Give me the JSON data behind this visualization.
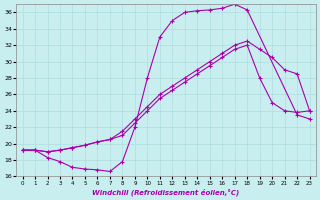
{
  "xlabel": "Windchill (Refroidissement éolien,°C)",
  "background_color": "#c8eef0",
  "grid_color": "#b0dde0",
  "line_color": "#aa00aa",
  "xlim": [
    -0.5,
    23.5
  ],
  "ylim": [
    16,
    37
  ],
  "yticks": [
    16,
    18,
    20,
    22,
    24,
    26,
    28,
    30,
    32,
    34,
    36
  ],
  "xticks": [
    0,
    1,
    2,
    3,
    4,
    5,
    6,
    7,
    8,
    9,
    10,
    11,
    12,
    13,
    14,
    15,
    16,
    17,
    18,
    19,
    20,
    21,
    22,
    23
  ],
  "curve1_x": [
    0,
    1,
    2,
    3,
    4,
    5,
    6,
    7,
    8,
    9,
    10,
    11,
    12,
    13,
    14,
    15,
    16,
    17,
    18,
    22,
    23
  ],
  "curve1_y": [
    19.2,
    19.2,
    18.3,
    17.8,
    17.1,
    16.9,
    16.8,
    16.6,
    17.8,
    22.0,
    28.0,
    33.0,
    35.0,
    36.0,
    36.2,
    36.3,
    36.5,
    37.0,
    36.3,
    23.5,
    23.0
  ],
  "curve2_x": [
    0,
    1,
    2,
    3,
    4,
    5,
    6,
    7,
    8,
    9,
    10,
    11,
    12,
    13,
    14,
    15,
    16,
    17,
    18,
    19,
    20,
    21,
    22,
    23
  ],
  "curve2_y": [
    19.2,
    19.2,
    19.0,
    19.2,
    19.5,
    19.8,
    20.2,
    20.5,
    21.0,
    22.5,
    24.0,
    25.5,
    26.5,
    27.5,
    28.5,
    29.5,
    30.5,
    31.5,
    32.0,
    28.0,
    25.0,
    24.0,
    23.8,
    24.0
  ],
  "curve3_x": [
    0,
    1,
    2,
    3,
    4,
    5,
    6,
    7,
    8,
    9,
    10,
    11,
    12,
    13,
    14,
    15,
    16,
    17,
    18,
    19,
    20,
    21,
    22,
    23
  ],
  "curve3_y": [
    19.2,
    19.2,
    19.0,
    19.2,
    19.5,
    19.8,
    20.2,
    20.5,
    21.5,
    23.0,
    24.5,
    26.0,
    27.0,
    28.0,
    29.0,
    30.0,
    31.0,
    32.0,
    32.5,
    31.5,
    30.5,
    29.0,
    28.5,
    24.0
  ]
}
